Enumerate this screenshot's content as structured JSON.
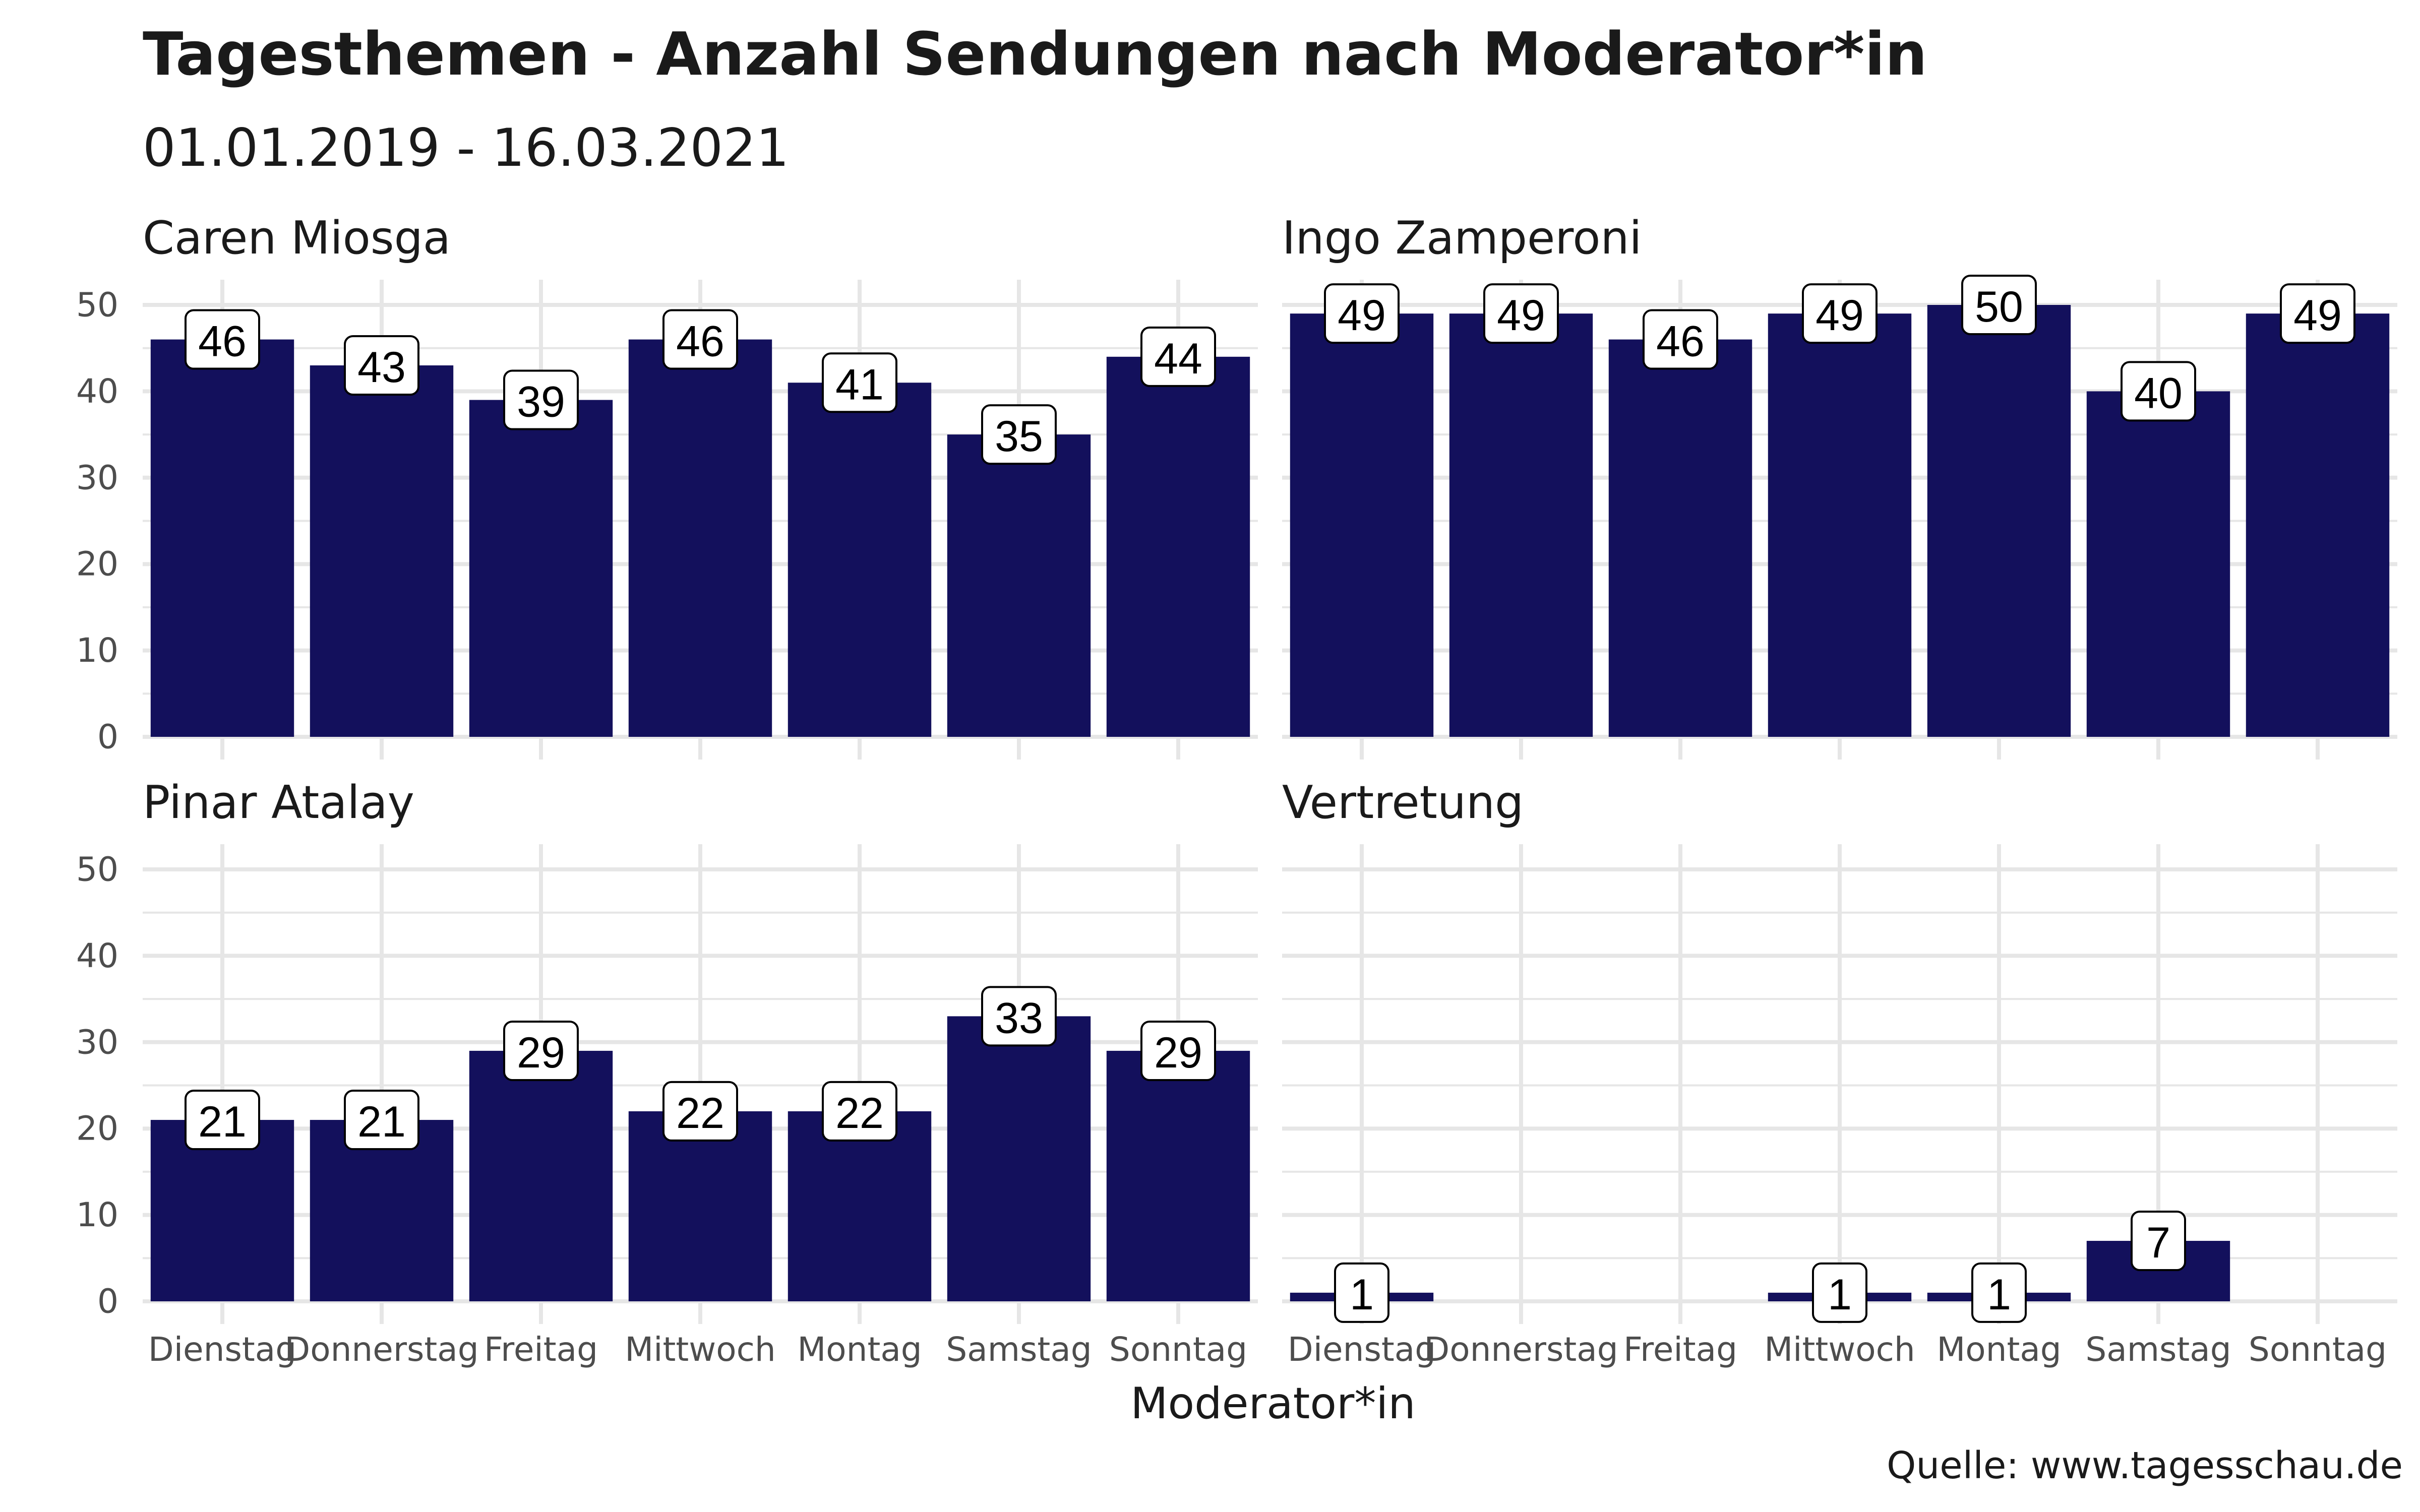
{
  "title": "Tagesthemen - Anzahl Sendungen nach Moderator*in",
  "subtitle": "01.01.2019 - 16.03.2021",
  "xlabel": "Moderator*in",
  "caption": "Quelle: www.tagesschau.de",
  "colors": {
    "bar": "#13105c",
    "grid": "#e6e6e6",
    "label_border": "#000000"
  },
  "chart_data": {
    "type": "bar",
    "categories": [
      "Dienstag",
      "Donnerstag",
      "Freitag",
      "Mittwoch",
      "Montag",
      "Samstag",
      "Sonntag"
    ],
    "ylim": [
      0,
      50
    ],
    "yticks": [
      0,
      10,
      20,
      30,
      40,
      50
    ],
    "grid": true,
    "panels": [
      {
        "name": "Caren Miosga",
        "values": [
          46,
          43,
          39,
          46,
          41,
          35,
          44
        ]
      },
      {
        "name": "Ingo Zamperoni",
        "values": [
          49,
          49,
          46,
          49,
          50,
          40,
          49
        ]
      },
      {
        "name": "Pinar Atalay",
        "values": [
          21,
          21,
          29,
          22,
          22,
          33,
          29
        ]
      },
      {
        "name": "Vertretung",
        "values": [
          1,
          null,
          null,
          1,
          1,
          7,
          null
        ]
      }
    ]
  }
}
